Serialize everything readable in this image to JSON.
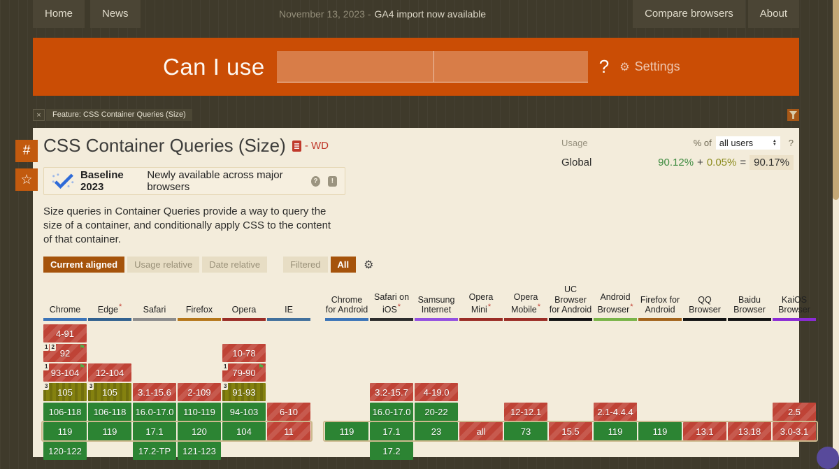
{
  "topbar": {
    "left": [
      {
        "label": "Home"
      },
      {
        "label": "News"
      }
    ],
    "announcement": {
      "date": "November 13, 2023 -",
      "message": "GA4 import now available"
    },
    "right": [
      {
        "label": "Compare browsers"
      },
      {
        "label": "About"
      }
    ]
  },
  "header": {
    "logo": "Can I use",
    "question_mark": "?",
    "settings_label": "Settings",
    "gear_icon": "⚙"
  },
  "filter_bar": {
    "close": "×",
    "tag": "Feature: CSS Container Queries (Size)"
  },
  "side_rail": {
    "hash": "#",
    "star": "☆"
  },
  "feature": {
    "title": "CSS Container Queries (Size)",
    "spec_status": "- WD",
    "baseline": {
      "badge": "Baseline 2023",
      "text": "Newly available across major browsers",
      "help": "?",
      "report": "!"
    },
    "description": "Size queries in Container Queries provide a way to query the size of a container, and conditionally apply CSS to the content of that container."
  },
  "usage": {
    "label": "Usage",
    "percent_of": "% of",
    "select_value": "all users",
    "help": "?",
    "region": "Global",
    "value_main": "90.12%",
    "plus": "+",
    "value_partial": "0.05%",
    "equals": "=",
    "total": "90.17%"
  },
  "controls": {
    "alignment": [
      {
        "label": "Current aligned",
        "active": true
      },
      {
        "label": "Usage relative",
        "active": false
      },
      {
        "label": "Date relative",
        "active": false
      }
    ],
    "filtered": {
      "label": "Filtered",
      "active": false
    },
    "all": {
      "label": "All",
      "active": true
    },
    "gear_icon": "⚙"
  },
  "colors": {
    "brand_orange": "#ca4d05",
    "active_button": "#a5530b",
    "content_bg": "#f3ecdb",
    "supported": "#2c8433",
    "unsupported": "#bf4336",
    "partial": "#84810f",
    "current_outline": "#ccb98e",
    "usage_green": "#3e8b40",
    "usage_olive": "#8c8c1e"
  },
  "support_table": {
    "current_row_index": 5,
    "row_count": 7,
    "flag_icon": "⚑",
    "groups": [
      {
        "name": "desktop",
        "columns": [
          {
            "label": "Chrome",
            "star": false,
            "bar": "#3b74b8",
            "cells": [
              {
                "row": 0,
                "text": "4-91",
                "type": "red"
              },
              {
                "row": 1,
                "text": "92",
                "type": "red",
                "notes": [
                  "1",
                  "2"
                ],
                "flag": true
              },
              {
                "row": 2,
                "text": "93-104",
                "type": "red",
                "notes": [
                  "1"
                ],
                "flag": true
              },
              {
                "row": 3,
                "text": "105",
                "type": "olive",
                "notes": [
                  "3"
                ]
              },
              {
                "row": 4,
                "text": "106-118",
                "type": "green"
              },
              {
                "row": 5,
                "text": "119",
                "type": "green"
              },
              {
                "row": 6,
                "text": "120-122",
                "type": "green"
              }
            ]
          },
          {
            "label": "Edge",
            "star": true,
            "bar": "#31618f",
            "cells": [
              {
                "row": 2,
                "text": "12-104",
                "type": "red"
              },
              {
                "row": 3,
                "text": "105",
                "type": "olive",
                "notes": [
                  "3"
                ]
              },
              {
                "row": 4,
                "text": "106-118",
                "type": "green"
              },
              {
                "row": 5,
                "text": "119",
                "type": "green"
              }
            ]
          },
          {
            "label": "Safari",
            "star": false,
            "bar": "#8d8d8d",
            "cells": [
              {
                "row": 3,
                "text": "3.1-15.6",
                "type": "red"
              },
              {
                "row": 4,
                "text": "16.0-17.0",
                "type": "green"
              },
              {
                "row": 5,
                "text": "17.1",
                "type": "green"
              },
              {
                "row": 6,
                "text": "17.2-TP",
                "type": "green"
              }
            ]
          },
          {
            "label": "Firefox",
            "star": false,
            "bar": "#b5771b",
            "cells": [
              {
                "row": 3,
                "text": "2-109",
                "type": "red"
              },
              {
                "row": 4,
                "text": "110-119",
                "type": "green"
              },
              {
                "row": 5,
                "text": "120",
                "type": "green"
              },
              {
                "row": 6,
                "text": "121-123",
                "type": "green"
              }
            ]
          },
          {
            "label": "Opera",
            "star": false,
            "bar": "#9a2d26",
            "cells": [
              {
                "row": 1,
                "text": "10-78",
                "type": "red"
              },
              {
                "row": 2,
                "text": "79-90",
                "type": "red",
                "notes": [
                  "1"
                ],
                "flag": true
              },
              {
                "row": 3,
                "text": "91-93",
                "type": "olive",
                "notes": [
                  "3"
                ]
              },
              {
                "row": 4,
                "text": "94-103",
                "type": "green"
              },
              {
                "row": 5,
                "text": "104",
                "type": "green"
              }
            ]
          },
          {
            "label": "IE",
            "star": false,
            "bar": "#41709c",
            "cells": [
              {
                "row": 4,
                "text": "6-10",
                "type": "red"
              },
              {
                "row": 5,
                "text": "11",
                "type": "red"
              }
            ]
          }
        ]
      },
      {
        "name": "mobile",
        "columns": [
          {
            "label": "Chrome for Android",
            "star": false,
            "bar": "#3b74b8",
            "cells": [
              {
                "row": 5,
                "text": "119",
                "type": "green"
              }
            ]
          },
          {
            "label": "Safari on iOS",
            "star": true,
            "bar": "#2d2d2d",
            "cells": [
              {
                "row": 3,
                "text": "3.2-15.7",
                "type": "red"
              },
              {
                "row": 4,
                "text": "16.0-17.0",
                "type": "green"
              },
              {
                "row": 5,
                "text": "17.1",
                "type": "green"
              },
              {
                "row": 6,
                "text": "17.2",
                "type": "green"
              }
            ]
          },
          {
            "label": "Samsung Internet",
            "star": false,
            "bar": "#9350e0",
            "cells": [
              {
                "row": 3,
                "text": "4-19.0",
                "type": "red"
              },
              {
                "row": 4,
                "text": "20-22",
                "type": "green"
              },
              {
                "row": 5,
                "text": "23",
                "type": "green"
              }
            ]
          },
          {
            "label": "Opera Mini",
            "star": true,
            "bar": "#9a2d26",
            "cells": [
              {
                "row": 5,
                "text": "all",
                "type": "red"
              }
            ]
          },
          {
            "label": "Opera Mobile",
            "star": true,
            "bar": "#9a2d26",
            "cells": [
              {
                "row": 4,
                "text": "12-12.1",
                "type": "red"
              },
              {
                "row": 5,
                "text": "73",
                "type": "green"
              }
            ]
          },
          {
            "label": "UC Browser for Android",
            "star": false,
            "bar": "#141414",
            "cells": [
              {
                "row": 5,
                "text": "15.5",
                "type": "red"
              }
            ]
          },
          {
            "label": "Android Browser",
            "star": true,
            "bar": "#79b448",
            "cells": [
              {
                "row": 4,
                "text": "2.1-4.4.4",
                "type": "red"
              },
              {
                "row": 5,
                "text": "119",
                "type": "green"
              }
            ]
          },
          {
            "label": "Firefox for Android",
            "star": false,
            "bar": "#a3641d",
            "cells": [
              {
                "row": 5,
                "text": "119",
                "type": "green"
              }
            ]
          },
          {
            "label": "QQ Browser",
            "star": false,
            "bar": "#141414",
            "cells": [
              {
                "row": 5,
                "text": "13.1",
                "type": "red"
              }
            ]
          },
          {
            "label": "Baidu Browser",
            "star": false,
            "bar": "#141414",
            "cells": [
              {
                "row": 5,
                "text": "13.18",
                "type": "red"
              }
            ]
          },
          {
            "label": "KaiOS Browser",
            "star": false,
            "bar": "#8b2bd5",
            "cells": [
              {
                "row": 4,
                "text": "2.5",
                "type": "red"
              },
              {
                "row": 5,
                "text": "3.0-3.1",
                "type": "red"
              }
            ]
          }
        ]
      }
    ]
  }
}
